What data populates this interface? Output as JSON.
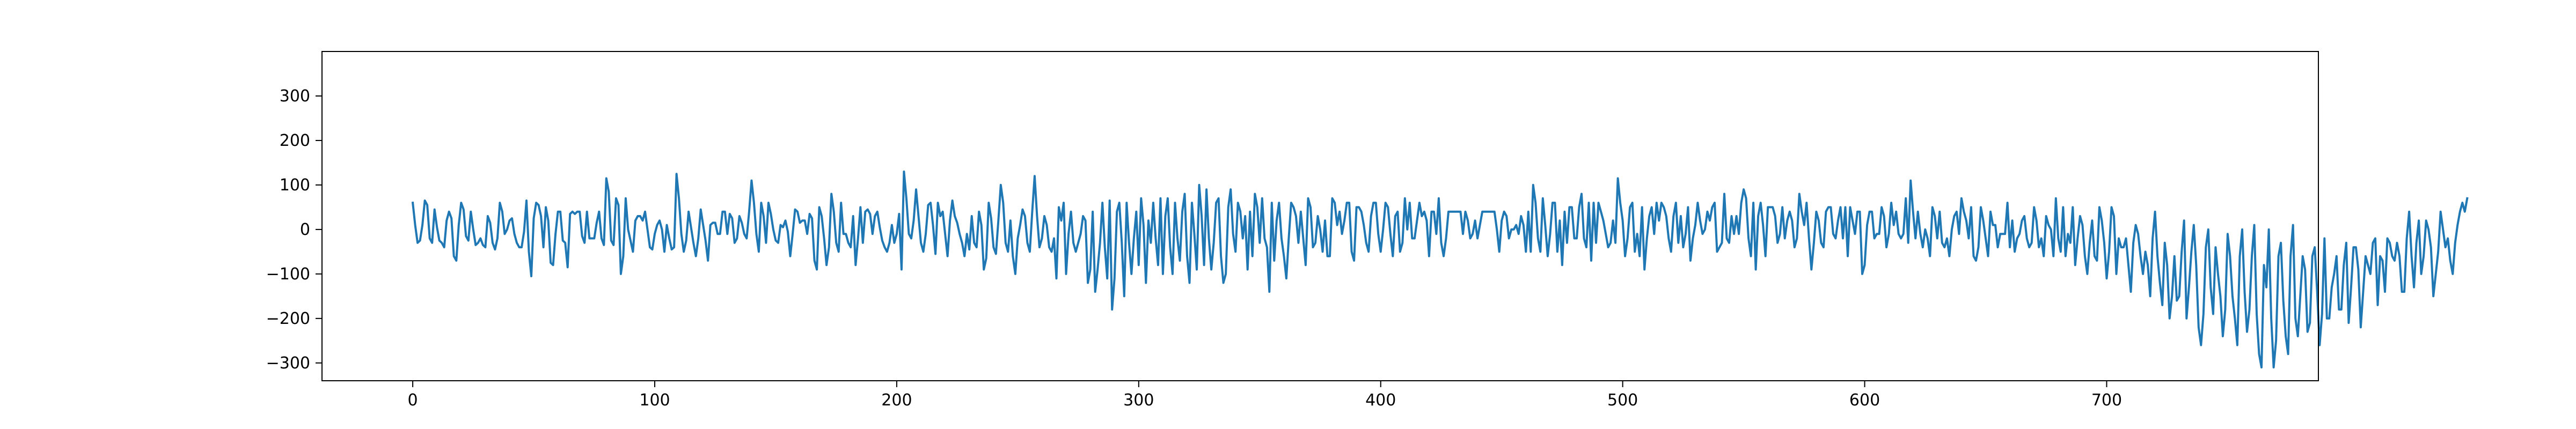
{
  "chart_data": {
    "type": "line",
    "title": "",
    "xlabel": "",
    "ylabel": "",
    "xlim": [
      -37.5,
      787.5
    ],
    "ylim": [
      -340,
      400
    ],
    "grid": false,
    "legend": "none",
    "xticks": [
      0,
      100,
      200,
      300,
      400,
      500,
      600,
      700
    ],
    "yticks": [
      -300,
      -200,
      -100,
      0,
      100,
      200,
      300
    ],
    "colors": {
      "series": "#1f77b4",
      "axes": "#000000",
      "background": "#ffffff"
    },
    "series": [
      {
        "x_start": 0,
        "x_step": 1,
        "values": [
          60,
          10,
          -30,
          -25,
          10,
          65,
          55,
          -20,
          -30,
          45,
          5,
          -25,
          -30,
          -40,
          20,
          40,
          25,
          -60,
          -70,
          10,
          60,
          45,
          -15,
          -25,
          40,
          0,
          -35,
          -30,
          -20,
          -35,
          -40,
          30,
          15,
          -30,
          -45,
          -20,
          60,
          40,
          -10,
          0,
          20,
          25,
          -10,
          -30,
          -40,
          -40,
          -5,
          65,
          -50,
          -105,
          25,
          60,
          55,
          30,
          -40,
          50,
          20,
          -75,
          -80,
          -10,
          40,
          40,
          -25,
          -30,
          -85,
          35,
          40,
          35,
          40,
          40,
          -15,
          -30,
          40,
          -20,
          -20,
          -20,
          15,
          40,
          -20,
          -35,
          115,
          85,
          -25,
          -35,
          70,
          55,
          -100,
          -60,
          70,
          0,
          -25,
          -50,
          20,
          30,
          30,
          20,
          40,
          0,
          -40,
          -45,
          -10,
          10,
          20,
          0,
          -50,
          10,
          -20,
          -45,
          -40,
          125,
          70,
          -10,
          -50,
          -25,
          40,
          5,
          -30,
          -60,
          -20,
          45,
          10,
          -25,
          -70,
          10,
          15,
          15,
          -10,
          -10,
          40,
          40,
          -10,
          35,
          25,
          -30,
          -20,
          30,
          15,
          -10,
          -20,
          40,
          110,
          60,
          -10,
          -50,
          60,
          30,
          -30,
          60,
          35,
          0,
          -25,
          -30,
          10,
          5,
          20,
          -5,
          -60,
          -10,
          45,
          40,
          15,
          20,
          20,
          -10,
          35,
          25,
          -70,
          -90,
          50,
          30,
          -20,
          -80,
          -40,
          80,
          40,
          -30,
          -50,
          60,
          -10,
          -10,
          -30,
          -40,
          30,
          -80,
          -20,
          50,
          -30,
          40,
          45,
          35,
          -10,
          30,
          40,
          5,
          -25,
          -40,
          -50,
          -30,
          10,
          -30,
          -10,
          35,
          -90,
          130,
          70,
          -10,
          -20,
          20,
          90,
          30,
          -30,
          -50,
          -10,
          55,
          60,
          10,
          -55,
          60,
          30,
          40,
          -10,
          -60,
          20,
          65,
          30,
          15,
          -10,
          -30,
          -60,
          -10,
          -45,
          30,
          -30,
          -40,
          40,
          10,
          -90,
          -65,
          60,
          25,
          -40,
          -55,
          20,
          100,
          60,
          -30,
          -50,
          20,
          -60,
          -100,
          -20,
          10,
          45,
          30,
          -30,
          -50,
          40,
          120,
          30,
          -40,
          -20,
          30,
          10,
          -40,
          -50,
          -20,
          -110,
          50,
          20,
          60,
          -100,
          -10,
          40,
          -30,
          -50,
          -30,
          -10,
          30,
          20,
          -120,
          -90,
          40,
          -140,
          -90,
          -30,
          60,
          -40,
          -110,
          65,
          -180,
          -110,
          40,
          60,
          -30,
          -150,
          60,
          -30,
          -100,
          -20,
          40,
          -80,
          70,
          10,
          -120,
          20,
          -30,
          60,
          -20,
          -80,
          70,
          -100,
          30,
          70,
          -40,
          -100,
          60,
          -20,
          -70,
          40,
          80,
          -60,
          -120,
          60,
          -10,
          -90,
          100,
          30,
          -80,
          90,
          -20,
          -90,
          -30,
          60,
          70,
          -60,
          -120,
          -100,
          50,
          90,
          -10,
          -50,
          60,
          40,
          -20,
          30,
          -90,
          40,
          -60,
          80,
          50,
          -30,
          70,
          -20,
          -40,
          -140,
          60,
          -70,
          20,
          60,
          -20,
          -60,
          -110,
          -20,
          60,
          50,
          30,
          -30,
          40,
          -20,
          -80,
          70,
          50,
          -40,
          -30,
          30,
          0,
          -50,
          20,
          -60,
          -60,
          70,
          60,
          10,
          40,
          -10,
          20,
          60,
          60,
          -50,
          -70,
          50,
          50,
          40,
          10,
          -30,
          -50,
          30,
          60,
          60,
          -10,
          -50,
          0,
          60,
          50,
          -10,
          -60,
          30,
          40,
          -50,
          -30,
          70,
          0,
          60,
          -20,
          -20,
          20,
          60,
          30,
          40,
          20,
          -60,
          40,
          40,
          -10,
          70,
          -30,
          -60,
          -20,
          40,
          40,
          40,
          40,
          40,
          40,
          -10,
          40,
          20,
          -20,
          -10,
          20,
          -20,
          10,
          40,
          40,
          40,
          40,
          40,
          40,
          0,
          -50,
          20,
          40,
          30,
          -20,
          0,
          0,
          10,
          -10,
          30,
          10,
          -50,
          40,
          -50,
          100,
          60,
          -20,
          -50,
          70,
          10,
          -60,
          -10,
          60,
          60,
          -50,
          20,
          -80,
          40,
          -30,
          50,
          50,
          -20,
          -20,
          50,
          80,
          -20,
          -40,
          60,
          -70,
          60,
          -30,
          60,
          40,
          20,
          -10,
          -40,
          -30,
          20,
          -30,
          115,
          60,
          20,
          -60,
          -20,
          50,
          60,
          -50,
          -10,
          -60,
          50,
          -90,
          -20,
          30,
          50,
          -10,
          60,
          20,
          60,
          50,
          30,
          -20,
          -50,
          30,
          60,
          -30,
          30,
          -40,
          -10,
          50,
          -70,
          -20,
          10,
          60,
          20,
          -10,
          0,
          40,
          20,
          50,
          60,
          -50,
          -40,
          -30,
          80,
          -20,
          -30,
          30,
          -10,
          30,
          -10,
          60,
          90,
          70,
          -20,
          -60,
          60,
          -90,
          30,
          60,
          10,
          -60,
          50,
          50,
          50,
          30,
          -30,
          -10,
          50,
          -20,
          20,
          40,
          20,
          -40,
          -20,
          80,
          40,
          10,
          60,
          -20,
          -90,
          -30,
          40,
          20,
          -30,
          -40,
          40,
          50,
          50,
          -10,
          -20,
          20,
          50,
          -20,
          50,
          -60,
          50,
          20,
          -10,
          40,
          40,
          -100,
          -80,
          10,
          40,
          40,
          -20,
          -10,
          -10,
          50,
          30,
          -40,
          -10,
          60,
          10,
          40,
          -10,
          -20,
          -10,
          70,
          -30,
          110,
          40,
          -20,
          40,
          -10,
          -40,
          0,
          -20,
          -60,
          50,
          30,
          -20,
          40,
          -30,
          -40,
          -20,
          -60,
          0,
          30,
          40,
          -10,
          70,
          40,
          20,
          -20,
          50,
          -60,
          -70,
          -40,
          50,
          20,
          -20,
          -60,
          40,
          10,
          10,
          -40,
          -10,
          -10,
          -10,
          60,
          -40,
          20,
          -50,
          -20,
          -10,
          20,
          30,
          -20,
          -40,
          -30,
          50,
          20,
          -40,
          -20,
          -60,
          30,
          10,
          0,
          -60,
          70,
          -20,
          -50,
          50,
          -60,
          -10,
          -30,
          50,
          -80,
          -20,
          30,
          10,
          -60,
          -100,
          -30,
          20,
          -60,
          -70,
          50,
          20,
          -30,
          -110,
          -50,
          50,
          30,
          -100,
          -20,
          -40,
          -40,
          -20,
          -80,
          -140,
          -30,
          10,
          -10,
          -60,
          -100,
          -50,
          -80,
          -150,
          -20,
          40,
          -60,
          -120,
          -170,
          -30,
          -80,
          -200,
          -150,
          -60,
          -160,
          -150,
          -50,
          20,
          -200,
          -130,
          -50,
          10,
          -80,
          -220,
          -260,
          -190,
          -40,
          0,
          -130,
          -190,
          -40,
          -100,
          -150,
          -240,
          -180,
          -10,
          -60,
          -150,
          -200,
          -260,
          -60,
          0,
          -140,
          -230,
          -180,
          -60,
          10,
          -190,
          -280,
          -310,
          -80,
          -130,
          0,
          -200,
          -310,
          -250,
          -60,
          -30,
          -160,
          -240,
          -280,
          -60,
          10,
          -200,
          -240,
          -150,
          -60,
          -90,
          -230,
          -210,
          -60,
          -40,
          -140,
          -260,
          -190,
          -20,
          -200,
          -200,
          -130,
          -100,
          -60,
          -180,
          -180,
          -80,
          -30,
          -210,
          -130,
          -40,
          -40,
          -90,
          -220,
          -140,
          -60,
          -80,
          -100,
          -30,
          -20,
          -170,
          -60,
          -70,
          -140,
          -20,
          -30,
          -60,
          -70,
          -30,
          -60,
          -140,
          -140,
          -20,
          40,
          -60,
          -130,
          -30,
          20,
          -100,
          -60,
          20,
          0,
          -40,
          -150,
          -100,
          -50,
          40,
          0,
          -40,
          -20,
          -70,
          -100,
          -30,
          10,
          40,
          60,
          40,
          70
        ]
      }
    ]
  }
}
